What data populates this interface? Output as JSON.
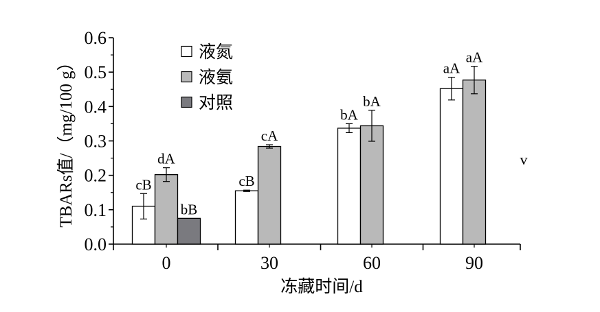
{
  "chart_data": {
    "type": "bar",
    "title": "",
    "xlabel": "冻藏时间/d",
    "ylabel": "TBARs值/（mg/100 g）",
    "ylim": [
      0,
      0.6
    ],
    "yticks": [
      "0.0",
      "0.1",
      "0.2",
      "0.3",
      "0.4",
      "0.5",
      "0.6"
    ],
    "categories": [
      "0",
      "30",
      "60",
      "90"
    ],
    "legend_position": "top-left",
    "series": [
      {
        "name": "液氮",
        "color": "#ffffff",
        "values": [
          0.11,
          0.155,
          0.337,
          0.452
        ],
        "errors": [
          0.037,
          0.002,
          0.013,
          0.033
        ],
        "labels": [
          "cB",
          "cB",
          "bA",
          "aA"
        ]
      },
      {
        "name": "液氨",
        "color": "#b9b9b9",
        "values": [
          0.202,
          0.284,
          0.344,
          0.477
        ],
        "errors": [
          0.02,
          0.005,
          0.045,
          0.04
        ],
        "labels": [
          "dA",
          "cA",
          "bA",
          "aA"
        ]
      },
      {
        "name": "对照",
        "color": "#7a7a7f",
        "values": [
          0.075,
          null,
          null,
          null
        ],
        "errors": [
          null,
          null,
          null,
          null
        ],
        "labels": [
          "bB",
          null,
          null,
          null
        ]
      }
    ],
    "annotation": "v"
  }
}
